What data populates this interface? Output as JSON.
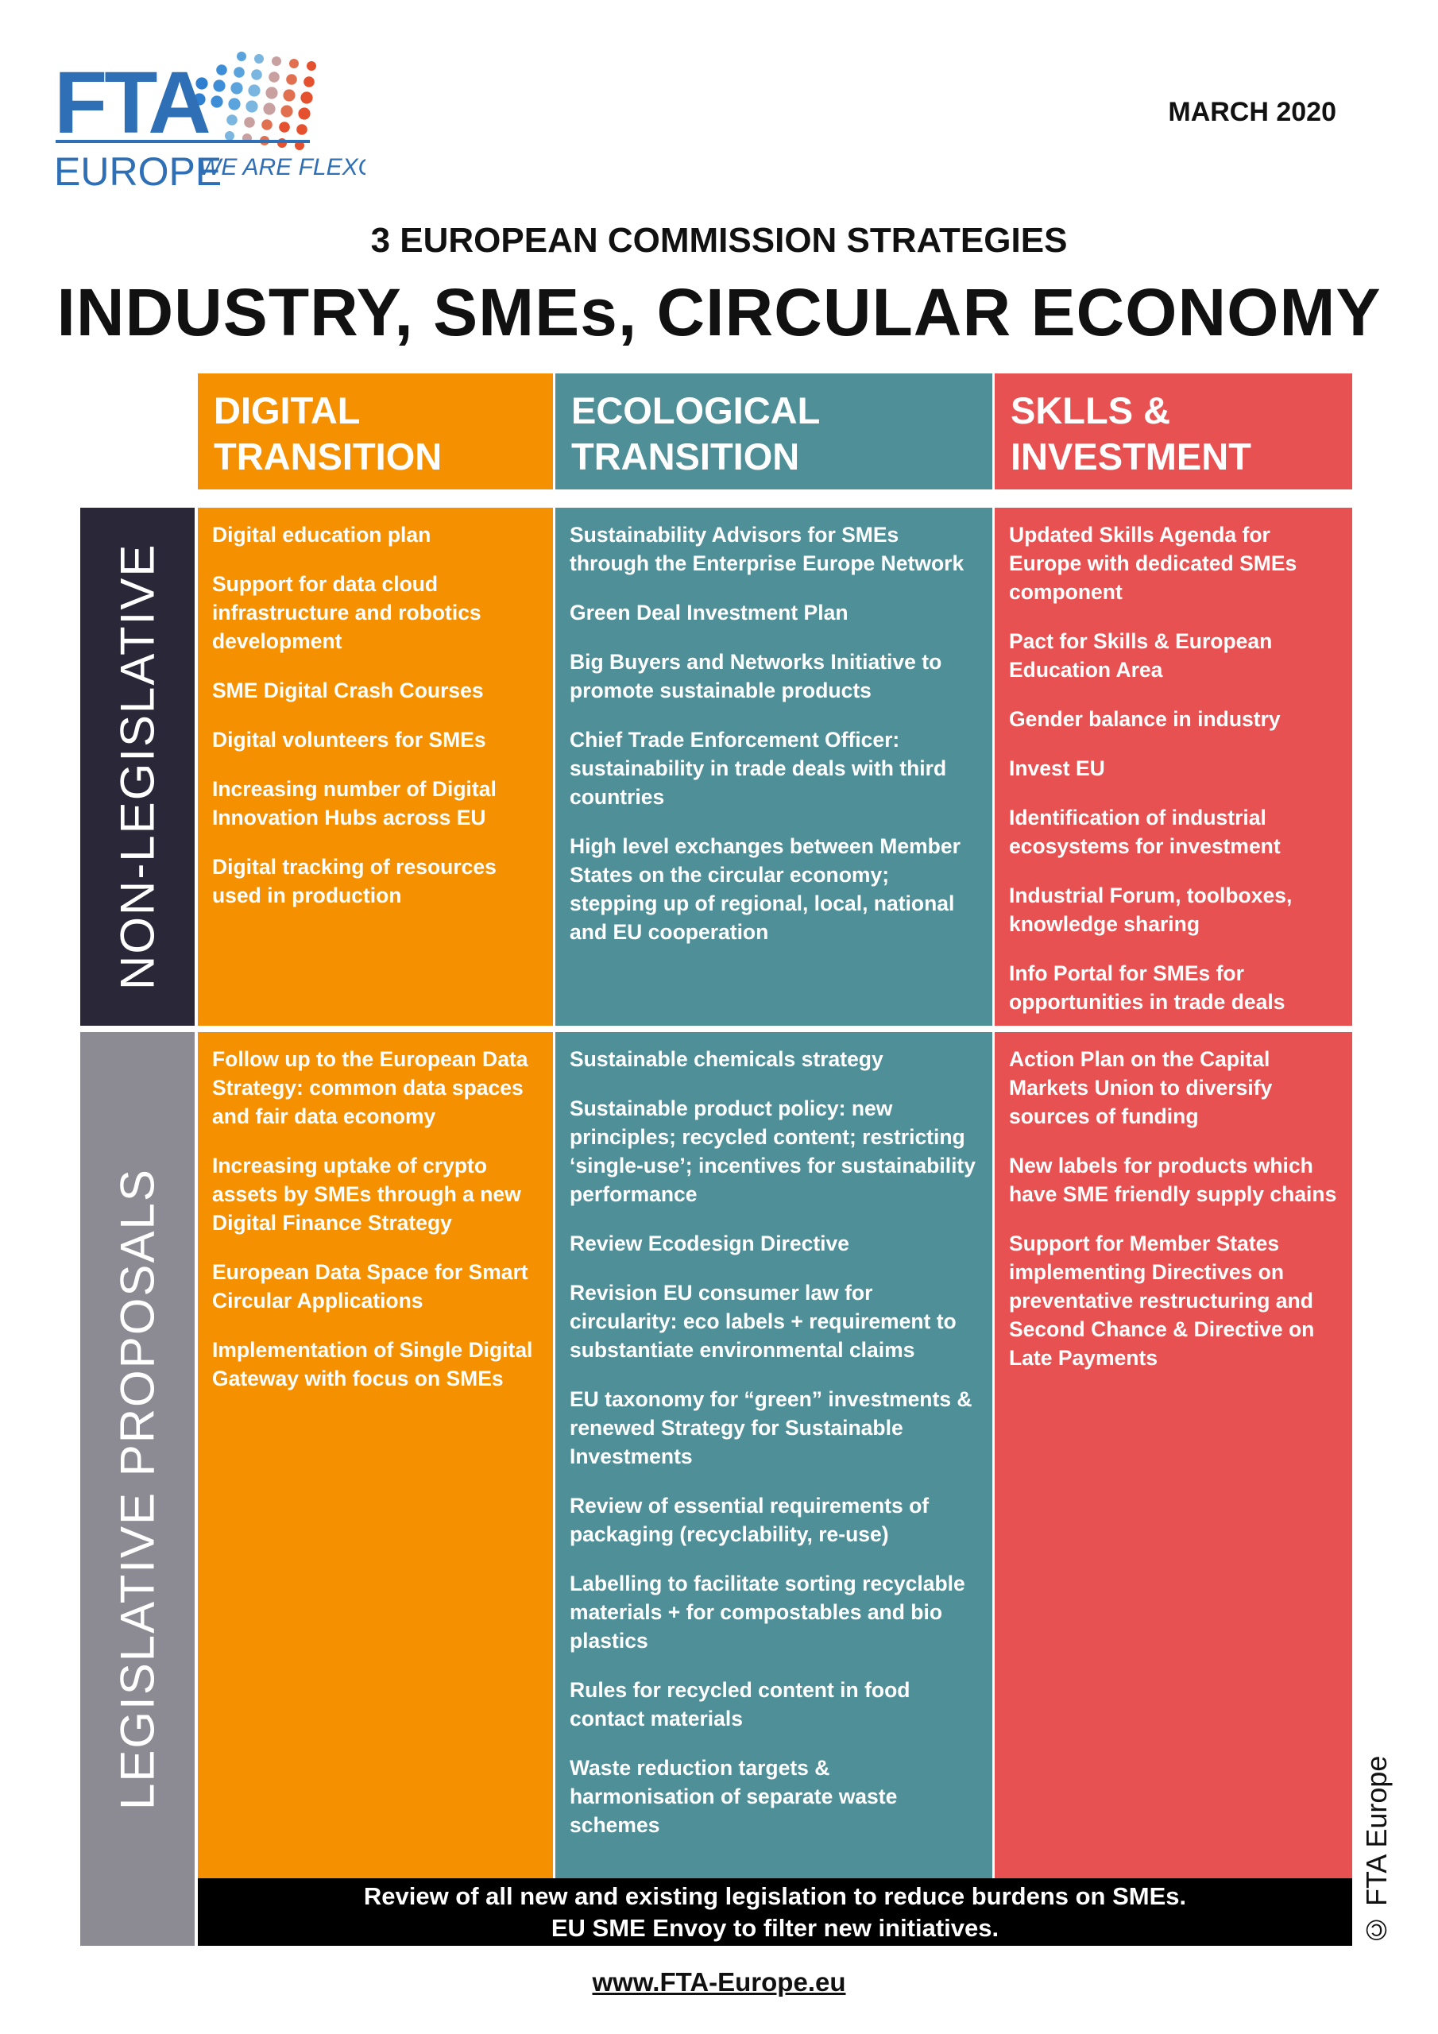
{
  "header": {
    "logo": {
      "mark": "FTA",
      "name": "EUROPE",
      "tagline": "WE ARE FLEXO"
    },
    "date": "MARCH 2020",
    "subtitle": "3 EUROPEAN COMMISSION STRATEGIES",
    "title": "INDUSTRY, SMEs, CIRCULAR ECONOMY"
  },
  "table": {
    "columns": [
      "DIGITAL TRANSITION",
      "ECOLOGICAL TRANSITION",
      "SKLLS & INVESTMENT"
    ],
    "rows": [
      {
        "label": "NON-LEGISLATIVE",
        "cells": [
          [
            "Digital education plan",
            "Support for data cloud infrastructure and robotics development",
            "SME Digital Crash Courses",
            "Digital volunteers for SMEs",
            "Increasing number of Digital Innovation Hubs across EU",
            "Digital tracking of resources used in production"
          ],
          [
            "Sustainability Advisors for SMEs through the Enterprise Europe Network",
            "Green Deal Investment Plan",
            "Big Buyers and Networks Initiative to promote sustainable products",
            "Chief Trade Enforcement Officer: sustainability in trade deals with third countries",
            "High level exchanges between Member States on the circular economy; stepping up of regional, local, national and EU cooperation"
          ],
          [
            "Updated Skills Agenda for Europe with dedicated SMEs component",
            "Pact for Skills & European Education Area",
            "Gender balance in industry",
            "Invest EU",
            "Identification of industrial ecosystems for investment",
            "Industrial Forum, toolboxes, knowledge sharing",
            "Info Portal for SMEs for opportunities in trade deals"
          ]
        ]
      },
      {
        "label": "LEGISLATIVE PROPOSALS",
        "cells": [
          [
            "Follow up to the European Data Strategy: common data spaces and fair data economy",
            "Increasing uptake of crypto assets by SMEs through a new Digital Finance Strategy",
            "European Data Space for Smart Circular Applications",
            "Implementation of Single Digital Gateway with focus on SMEs"
          ],
          [
            "Sustainable chemicals strategy",
            "Sustainable product policy: new principles; recycled content; restricting ‘single-use’; incentives for sustainability performance",
            "Review Ecodesign Directive",
            "Revision EU consumer law for circularity: eco labels + requirement to substantiate environmental claims",
            "EU taxonomy for “green” investments & renewed Strategy for Sustainable Investments",
            "Review of essential requirements of packaging (recyclability, re-use)",
            "Labelling to facilitate sorting recyclable materials + for compostables and bio plastics",
            "Rules for recycled content in food contact materials",
            "Waste reduction targets & harmonisation of separate waste schemes"
          ],
          [
            "Action Plan on the Capital Markets Union to diversify sources of funding",
            "New labels for products which have SME friendly supply chains",
            "Support for Member States implementing Directives on preventative restructuring and Second Chance & Directive on Late Payments"
          ]
        ]
      }
    ]
  },
  "bottom_note": [
    "Review of all new and existing legislation to reduce burdens on SMEs.",
    "EU SME Envoy to filter new initiatives."
  ],
  "footer": {
    "url": "www.FTA-Europe.eu",
    "copyright": "© FTA Europe"
  }
}
